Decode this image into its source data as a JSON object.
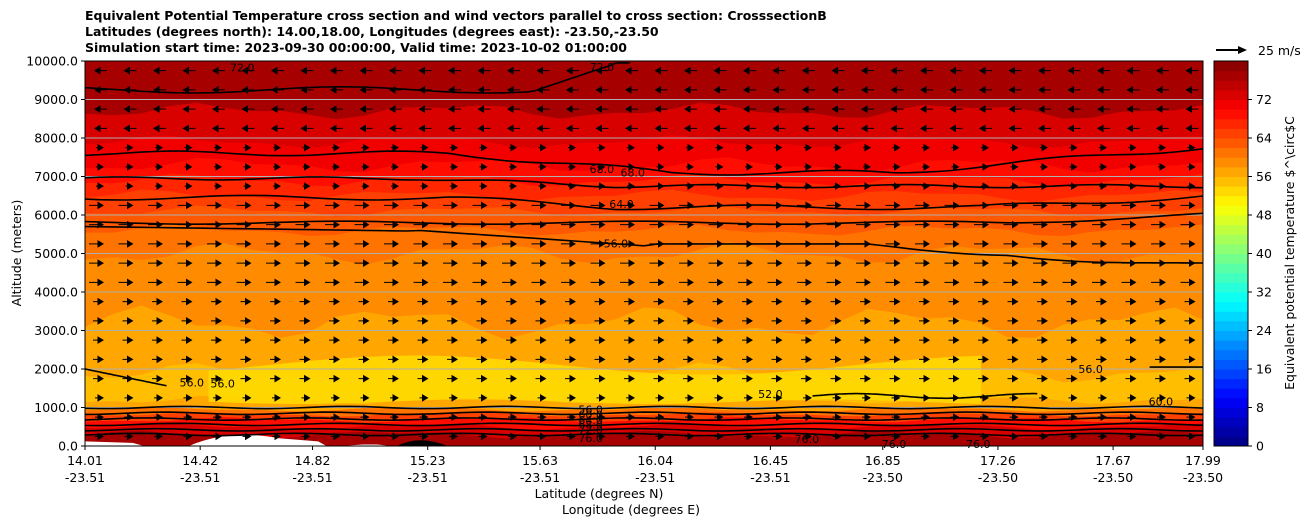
{
  "chart_data": {
    "type": "heatmap",
    "title_lines": [
      "Equivalent Potential Temperature cross section and wind vectors parallel to cross section: CrosssectionB",
      "Latitudes (degrees north): 14.00,18.00, Longitudes (degrees east): -23.50,-23.50",
      "Simulation start time: 2023-09-30 00:00:00, Valid time: 2023-10-02 01:00:00"
    ],
    "xlabel": "Latitude (degrees N)",
    "xlabel2": "Longitude (degrees E)",
    "ylabel": "Altitude (meters)",
    "ylim": [
      0,
      10000
    ],
    "y_ticks": [
      "0.0",
      "1000.0",
      "2000.0",
      "3000.0",
      "4000.0",
      "5000.0",
      "6000.0",
      "7000.0",
      "8000.0",
      "9000.0",
      "10000.0"
    ],
    "x_ticks": [
      {
        "lat": "14.01",
        "lon": "-23.51"
      },
      {
        "lat": "14.42",
        "lon": "-23.51"
      },
      {
        "lat": "14.82",
        "lon": "-23.51"
      },
      {
        "lat": "15.23",
        "lon": "-23.51"
      },
      {
        "lat": "15.63",
        "lon": "-23.51"
      },
      {
        "lat": "16.04",
        "lon": "-23.51"
      },
      {
        "lat": "16.45",
        "lon": "-23.51"
      },
      {
        "lat": "16.85",
        "lon": "-23.50"
      },
      {
        "lat": "17.26",
        "lon": "-23.50"
      },
      {
        "lat": "17.67",
        "lon": "-23.50"
      },
      {
        "lat": "17.99",
        "lon": "-23.50"
      }
    ],
    "grid": "horizontal",
    "colorbar": {
      "label": "Equivalent potential temperature $^\\circ$C",
      "min": 0,
      "max": 80,
      "step": 2,
      "ticks": [
        "0",
        "8",
        "16",
        "24",
        "32",
        "40",
        "48",
        "56",
        "64",
        "72"
      ],
      "colormap": "jet"
    },
    "quiver_key": "25 m/s",
    "contour_labels": [
      {
        "text": "72.0",
        "lat": 14.57,
        "alt": 9830
      },
      {
        "text": "72.0",
        "lat": 15.85,
        "alt": 9850
      },
      {
        "text": "68.0",
        "lat": 15.85,
        "alt": 7200
      },
      {
        "text": "68.0",
        "lat": 15.96,
        "alt": 7100
      },
      {
        "text": "64.0",
        "lat": 15.92,
        "alt": 6280
      },
      {
        "text": "56.0",
        "lat": 15.9,
        "alt": 5260
      },
      {
        "text": "56.0",
        "lat": 14.5,
        "alt": 1620
      },
      {
        "text": "56.0",
        "lat": 14.39,
        "alt": 1650
      },
      {
        "text": "52.0",
        "lat": 16.45,
        "alt": 1350
      },
      {
        "text": "56.0",
        "lat": 17.59,
        "alt": 2000
      },
      {
        "text": "60.0",
        "lat": 17.84,
        "alt": 1150
      },
      {
        "text": "56.0",
        "lat": 15.81,
        "alt": 950
      },
      {
        "text": "60.0",
        "lat": 15.81,
        "alt": 820
      },
      {
        "text": "64.0",
        "lat": 15.81,
        "alt": 680
      },
      {
        "text": "68.0",
        "lat": 15.81,
        "alt": 560
      },
      {
        "text": "72.0",
        "lat": 15.81,
        "alt": 430
      },
      {
        "text": "76.0",
        "lat": 15.81,
        "alt": 210
      },
      {
        "text": "76.0",
        "lat": 16.58,
        "alt": 180
      },
      {
        "text": "76.0",
        "lat": 16.89,
        "alt": 50
      },
      {
        "text": "76.0",
        "lat": 17.19,
        "alt": 50
      }
    ]
  }
}
